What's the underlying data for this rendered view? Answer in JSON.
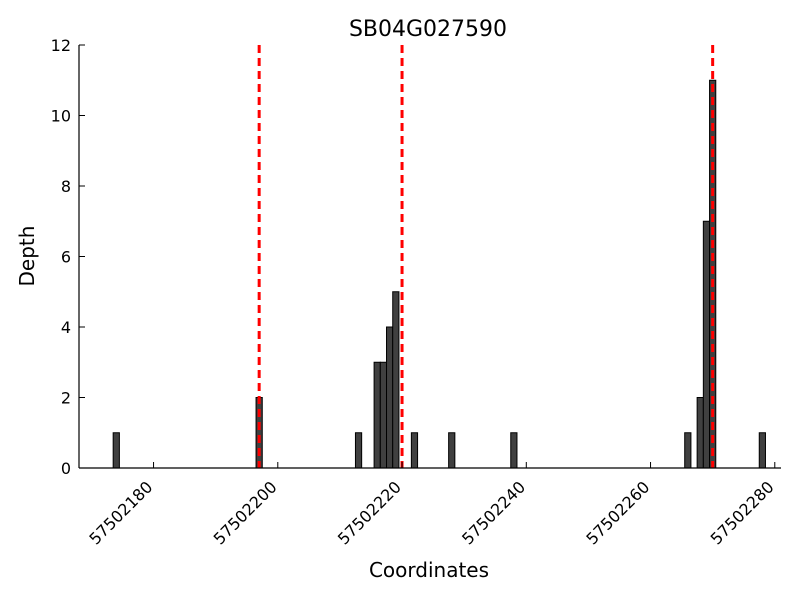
{
  "chart_data": {
    "type": "bar",
    "title": "SB04G027590",
    "xlabel": "Coordinates",
    "ylabel": "Depth",
    "xlim": [
      57502168,
      57502281
    ],
    "ylim": [
      0,
      12
    ],
    "xticks": [
      57502180,
      57502200,
      57502220,
      57502240,
      57502260,
      57502280
    ],
    "yticks": [
      0,
      2,
      4,
      6,
      8,
      10,
      12
    ],
    "bar_width": 1,
    "bars": [
      {
        "x": 57502174,
        "y": 1
      },
      {
        "x": 57502197,
        "y": 2
      },
      {
        "x": 57502213,
        "y": 1
      },
      {
        "x": 57502216,
        "y": 3
      },
      {
        "x": 57502217,
        "y": 3
      },
      {
        "x": 57502218,
        "y": 4
      },
      {
        "x": 57502219,
        "y": 5
      },
      {
        "x": 57502222,
        "y": 1
      },
      {
        "x": 57502228,
        "y": 1
      },
      {
        "x": 57502238,
        "y": 1
      },
      {
        "x": 57502266,
        "y": 1
      },
      {
        "x": 57502268,
        "y": 2
      },
      {
        "x": 57502269,
        "y": 7
      },
      {
        "x": 57502270,
        "y": 11
      },
      {
        "x": 57502278,
        "y": 1
      }
    ],
    "reference_lines": [
      57502197,
      57502220,
      57502270
    ],
    "grid": false,
    "colors": {
      "bar_fill": "#404040",
      "bar_stroke": "#000000",
      "reference_line": "#ff0000"
    }
  }
}
